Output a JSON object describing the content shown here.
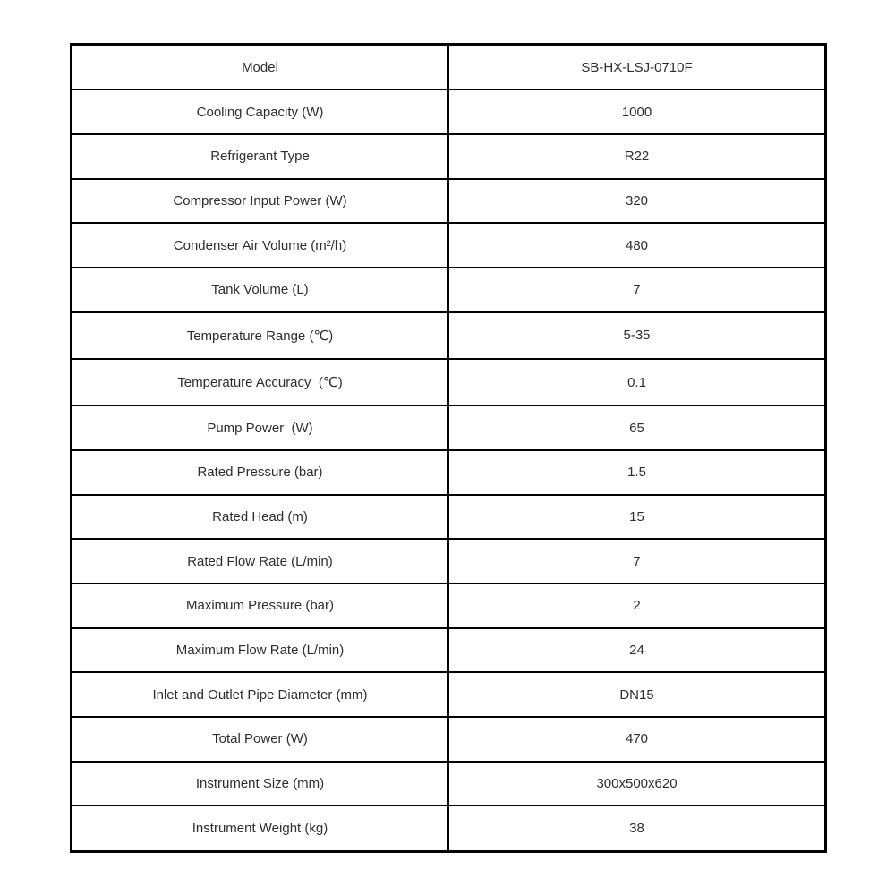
{
  "page": {
    "background_color": "#ffffff",
    "text_color": "#2e2e2e",
    "border_color": "#000000"
  },
  "table": {
    "rows": [
      {
        "label": "Model",
        "value": "SB-HX-LSJ-0710F"
      },
      {
        "label": "Cooling Capacity (W)",
        "value": "1000"
      },
      {
        "label": "Refrigerant Type",
        "value": "R22"
      },
      {
        "label": "Compressor Input Power (W)",
        "value": "320"
      },
      {
        "label": "Condenser Air Volume (m²/h)",
        "value": "480"
      },
      {
        "label": "Tank Volume (L)",
        "value": "7"
      },
      {
        "label": "Temperature Range (℃)",
        "value": "5-35"
      },
      {
        "label": "Temperature Accuracy  (℃)",
        "value": "0.1"
      },
      {
        "label": "Pump Power  (W)",
        "value": "65"
      },
      {
        "label": "Rated Pressure (bar)",
        "value": "1.5"
      },
      {
        "label": "Rated Head (m)",
        "value": "15"
      },
      {
        "label": "Rated Flow Rate (L/min)",
        "value": "7"
      },
      {
        "label": "Maximum Pressure (bar)",
        "value": "2"
      },
      {
        "label": "Maximum Flow Rate (L/min)",
        "value": "24"
      },
      {
        "label": "Inlet and Outlet Pipe Diameter (mm)",
        "value": "DN15"
      },
      {
        "label": "Total Power (W)",
        "value": "470"
      },
      {
        "label": "Instrument Size (mm)",
        "value": "300x500x620"
      },
      {
        "label": "Instrument Weight (kg)",
        "value": "38"
      }
    ]
  }
}
